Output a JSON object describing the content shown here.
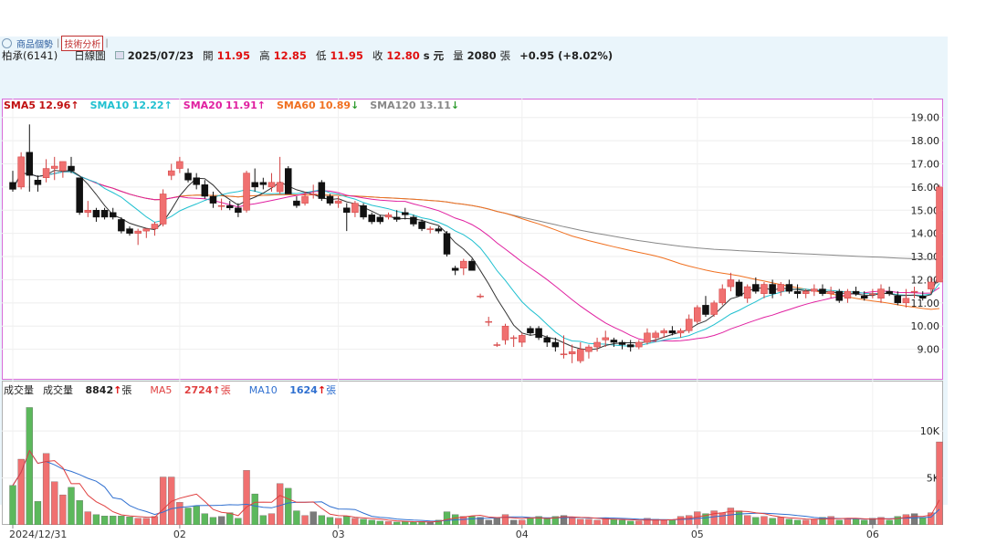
{
  "tabs": [
    {
      "label": "商品個勢"
    },
    {
      "label": "技術分析"
    }
  ],
  "header": {
    "stock": "柏承(6141)",
    "period": "日線圖",
    "date": "2025/07/23",
    "open_label": "開",
    "open": "11.95",
    "high_label": "高",
    "high": "12.85",
    "low_label": "低",
    "low": "11.95",
    "close_label": "收",
    "close": "12.80",
    "unit": "s 元",
    "vol_label": "量",
    "vol": "2080",
    "vol_unit": "張",
    "change": "+0.95 (+8.02%)"
  },
  "price_legend": [
    {
      "label": "SMA5",
      "value": "12.96",
      "arrow": "↑",
      "color": "#c01010"
    },
    {
      "label": "SMA10",
      "value": "12.22",
      "arrow": "↑",
      "color": "#20c0d0"
    },
    {
      "label": "SMA20",
      "value": "11.91",
      "arrow": "↑",
      "color": "#e020a0"
    },
    {
      "label": "SMA60",
      "value": "10.89",
      "arrow": "↓",
      "color": "#f07020"
    },
    {
      "label": "SMA120",
      "value": "13.11",
      "arrow": "↓",
      "color": "#888888"
    }
  ],
  "volume_legend": {
    "title": "成交量",
    "vol_label": "成交量",
    "vol_value": "8842",
    "vol_arrow": "↑",
    "vol_unit": "張",
    "ma5_label": "MA5",
    "ma5_value": "2724",
    "ma5_arrow": "↑",
    "ma5_unit": "張",
    "ma10_label": "MA10",
    "ma10_value": "1624",
    "ma10_arrow": "↑",
    "ma10_unit": "張"
  },
  "colors": {
    "up": "#f07070",
    "down": "#111111",
    "vol_up": "#f07070",
    "vol_down": "#5cb85c",
    "vol_flat": "#7a7a7a",
    "sma5": "#333333",
    "sma10": "#20c0d0",
    "sma20": "#e020a0",
    "sma60": "#f07020",
    "sma120": "#888888",
    "vma5": "#e04040",
    "vma10": "#3070d0"
  },
  "chart_data": {
    "type": "candlestick",
    "price_ylim": [
      8,
      19.5
    ],
    "price_ticks": [
      "19.00",
      "18.00",
      "17.00",
      "16.00",
      "15.00",
      "14.00",
      "13.00",
      "12.00",
      "11.00",
      "10.00",
      "9.00"
    ],
    "volume_ylim": [
      0,
      14000
    ],
    "volume_ticks": [
      "10K",
      "5K"
    ],
    "date_labels": [
      {
        "label": "2024/12/31",
        "index": 0
      },
      {
        "label": "02",
        "index": 20
      },
      {
        "label": "03",
        "index": 39
      },
      {
        "label": "04",
        "index": 61
      },
      {
        "label": "05",
        "index": 82
      },
      {
        "label": "06",
        "index": 103
      }
    ],
    "candles": [
      [
        16.2,
        16.7,
        15.8,
        15.9,
        4200
      ],
      [
        16.0,
        17.5,
        15.9,
        17.3,
        7000
      ],
      [
        17.5,
        18.7,
        15.8,
        16.5,
        12500
      ],
      [
        16.3,
        16.5,
        15.8,
        16.1,
        2500
      ],
      [
        16.4,
        17.2,
        16.2,
        16.8,
        7600
      ],
      [
        16.8,
        17.3,
        16.3,
        16.9,
        4600
      ],
      [
        16.7,
        17.1,
        16.4,
        17.1,
        3200
      ],
      [
        16.9,
        17.3,
        16.6,
        16.7,
        4000
      ],
      [
        16.4,
        16.4,
        14.8,
        14.9,
        2600
      ],
      [
        14.9,
        15.4,
        14.7,
        15.0,
        1400
      ],
      [
        15.0,
        15.1,
        14.5,
        14.7,
        1100
      ],
      [
        15.0,
        15.1,
        14.6,
        14.7,
        950
      ],
      [
        14.9,
        15.1,
        14.6,
        14.7,
        950
      ],
      [
        14.6,
        14.7,
        14.0,
        14.1,
        950
      ],
      [
        14.2,
        14.3,
        13.9,
        14.0,
        850
      ],
      [
        14.0,
        14.2,
        13.5,
        14.1,
        700
      ],
      [
        14.1,
        14.2,
        13.8,
        14.2,
        700
      ],
      [
        14.2,
        14.5,
        13.9,
        14.4,
        900
      ],
      [
        14.4,
        15.9,
        14.3,
        15.7,
        5100
      ],
      [
        16.5,
        17.0,
        16.3,
        16.7,
        5100
      ],
      [
        16.8,
        17.3,
        16.6,
        17.1,
        2400
      ],
      [
        16.6,
        16.8,
        16.2,
        16.3,
        1800
      ],
      [
        16.4,
        16.6,
        15.9,
        16.1,
        2000
      ],
      [
        16.1,
        16.3,
        15.5,
        15.6,
        1200
      ],
      [
        15.6,
        15.8,
        15.1,
        15.3,
        800
      ],
      [
        15.2,
        15.5,
        15.0,
        15.2,
        900
      ],
      [
        15.2,
        15.4,
        15.0,
        15.1,
        1300
      ],
      [
        15.1,
        15.3,
        14.7,
        14.9,
        700
      ],
      [
        15.0,
        16.7,
        14.9,
        16.6,
        5800
      ],
      [
        16.2,
        16.8,
        15.8,
        16.0,
        3300
      ],
      [
        16.2,
        16.4,
        15.9,
        16.1,
        1000
      ],
      [
        16.0,
        16.6,
        15.8,
        16.2,
        1200
      ],
      [
        15.8,
        17.3,
        15.7,
        16.2,
        4400
      ],
      [
        16.8,
        16.9,
        15.7,
        15.7,
        3900
      ],
      [
        15.4,
        15.6,
        15.1,
        15.2,
        1500
      ],
      [
        15.3,
        15.8,
        15.2,
        15.6,
        1000
      ],
      [
        15.7,
        16.1,
        15.5,
        15.7,
        1400
      ],
      [
        16.2,
        16.3,
        15.4,
        15.5,
        1000
      ],
      [
        15.6,
        15.7,
        15.2,
        15.3,
        800
      ],
      [
        15.3,
        15.6,
        15.1,
        15.4,
        700
      ],
      [
        15.1,
        15.3,
        14.1,
        14.9,
        900
      ],
      [
        14.9,
        15.4,
        14.7,
        15.3,
        700
      ],
      [
        15.2,
        15.3,
        14.6,
        14.7,
        600
      ],
      [
        14.8,
        14.9,
        14.4,
        14.5,
        500
      ],
      [
        14.7,
        14.8,
        14.4,
        14.5,
        400
      ],
      [
        14.7,
        14.9,
        14.6,
        14.8,
        350
      ],
      [
        14.7,
        15.0,
        14.5,
        14.6,
        300
      ],
      [
        14.9,
        15.1,
        14.6,
        14.8,
        350
      ],
      [
        14.7,
        14.8,
        14.3,
        14.4,
        300
      ],
      [
        14.5,
        14.6,
        14.1,
        14.2,
        350
      ],
      [
        14.2,
        14.3,
        14.0,
        14.2,
        300
      ],
      [
        14.2,
        14.3,
        14.0,
        14.1,
        500
      ],
      [
        14.0,
        14.1,
        13.0,
        13.1,
        1400
      ],
      [
        12.5,
        12.6,
        12.2,
        12.4,
        1100
      ],
      [
        12.5,
        12.9,
        12.2,
        12.8,
        900
      ],
      [
        12.8,
        12.9,
        12.4,
        12.4,
        900
      ],
      [
        11.3,
        11.4,
        11.2,
        11.3,
        800
      ],
      [
        10.2,
        10.4,
        10.0,
        10.2,
        500
      ],
      [
        9.2,
        9.3,
        9.1,
        9.2,
        800
      ],
      [
        9.4,
        10.1,
        9.2,
        10.0,
        1100
      ],
      [
        9.5,
        9.6,
        9.1,
        9.5,
        500
      ],
      [
        9.3,
        9.7,
        9.1,
        9.6,
        500
      ],
      [
        9.9,
        10.0,
        9.6,
        9.7,
        800
      ],
      [
        9.9,
        10.0,
        9.4,
        9.5,
        900
      ],
      [
        9.5,
        9.6,
        9.1,
        9.3,
        700
      ],
      [
        9.3,
        9.5,
        8.9,
        9.1,
        900
      ],
      [
        8.8,
        9.6,
        8.6,
        8.8,
        1000
      ],
      [
        8.8,
        9.2,
        8.4,
        8.9,
        800
      ],
      [
        8.5,
        9.3,
        8.4,
        9.0,
        600
      ],
      [
        8.9,
        9.2,
        8.6,
        9.1,
        600
      ],
      [
        9.1,
        9.5,
        8.9,
        9.3,
        500
      ],
      [
        9.4,
        9.8,
        9.1,
        9.5,
        700
      ],
      [
        9.4,
        9.5,
        9.1,
        9.3,
        600
      ],
      [
        9.3,
        9.4,
        9.0,
        9.2,
        500
      ],
      [
        9.2,
        9.4,
        8.9,
        9.1,
        400
      ],
      [
        9.1,
        9.4,
        9.0,
        9.3,
        400
      ],
      [
        9.3,
        9.9,
        9.2,
        9.7,
        700
      ],
      [
        9.5,
        9.8,
        9.3,
        9.7,
        600
      ],
      [
        9.7,
        9.9,
        9.5,
        9.8,
        500
      ],
      [
        9.8,
        10.0,
        9.6,
        9.7,
        500
      ],
      [
        9.7,
        9.9,
        9.5,
        9.8,
        900
      ],
      [
        9.8,
        10.5,
        9.7,
        10.3,
        1000
      ],
      [
        10.2,
        10.9,
        10.1,
        10.8,
        1400
      ],
      [
        10.9,
        11.3,
        10.4,
        10.5,
        1200
      ],
      [
        10.5,
        11.1,
        10.4,
        11.0,
        1500
      ],
      [
        11.0,
        11.8,
        10.9,
        11.6,
        1300
      ],
      [
        11.7,
        12.3,
        11.5,
        12.0,
        1800
      ],
      [
        11.9,
        12.0,
        11.3,
        11.3,
        1500
      ],
      [
        11.2,
        11.8,
        11.0,
        11.7,
        1000
      ],
      [
        11.8,
        12.1,
        11.4,
        11.5,
        800
      ],
      [
        11.4,
        11.9,
        11.2,
        11.8,
        900
      ],
      [
        11.8,
        12.0,
        11.2,
        11.4,
        700
      ],
      [
        11.5,
        11.9,
        11.3,
        11.8,
        800
      ],
      [
        11.8,
        12.0,
        11.4,
        11.5,
        600
      ],
      [
        11.5,
        11.8,
        11.2,
        11.4,
        500
      ],
      [
        11.4,
        11.6,
        11.2,
        11.5,
        500
      ],
      [
        11.5,
        11.8,
        11.3,
        11.6,
        600
      ],
      [
        11.6,
        11.8,
        11.3,
        11.4,
        800
      ],
      [
        11.4,
        11.7,
        11.2,
        11.5,
        900
      ],
      [
        11.5,
        11.6,
        11.0,
        11.1,
        500
      ],
      [
        11.2,
        11.6,
        11.0,
        11.5,
        700
      ],
      [
        11.5,
        11.7,
        11.3,
        11.4,
        600
      ],
      [
        11.3,
        11.5,
        11.1,
        11.2,
        500
      ],
      [
        11.4,
        11.6,
        11.2,
        11.4,
        700
      ],
      [
        11.2,
        11.8,
        11.0,
        11.6,
        800
      ],
      [
        11.5,
        11.7,
        11.3,
        11.4,
        500
      ],
      [
        11.3,
        11.5,
        10.9,
        11.0,
        900
      ],
      [
        11.0,
        11.6,
        10.8,
        11.2,
        1100
      ],
      [
        11.5,
        11.7,
        11.2,
        11.5,
        1200
      ],
      [
        11.3,
        11.5,
        11.1,
        11.2,
        800
      ],
      [
        11.6,
        12.1,
        11.4,
        11.9,
        1300
      ],
      [
        11.9,
        16.1,
        11.9,
        16.0,
        8842
      ]
    ]
  }
}
